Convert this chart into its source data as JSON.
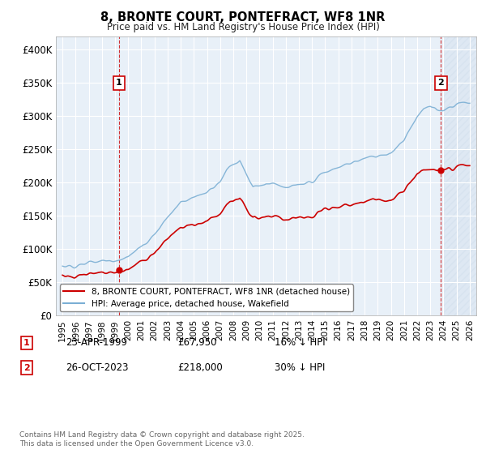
{
  "title": "8, BRONTE COURT, PONTEFRACT, WF8 1NR",
  "subtitle": "Price paid vs. HM Land Registry's House Price Index (HPI)",
  "ylim": [
    0,
    420000
  ],
  "yticks": [
    0,
    50000,
    100000,
    150000,
    200000,
    250000,
    300000,
    350000,
    400000
  ],
  "ytick_labels": [
    "£0",
    "£50K",
    "£100K",
    "£150K",
    "£200K",
    "£250K",
    "£300K",
    "£350K",
    "£400K"
  ],
  "xlim_start": 1994.5,
  "xlim_end": 2026.5,
  "sale1_date": 1999.31,
  "sale1_price": 67950,
  "sale1_label": "1",
  "sale2_date": 2023.81,
  "sale2_price": 218000,
  "sale2_label": "2",
  "legend_property": "8, BRONTE COURT, PONTEFRACT, WF8 1NR (detached house)",
  "legend_hpi": "HPI: Average price, detached house, Wakefield",
  "note1_label": "1",
  "note1_date": "23-APR-1999",
  "note1_price": "£67,950",
  "note1_hpi": "16% ↓ HPI",
  "note2_label": "2",
  "note2_date": "26-OCT-2023",
  "note2_price": "£218,000",
  "note2_hpi": "30% ↓ HPI",
  "copyright": "Contains HM Land Registry data © Crown copyright and database right 2025.\nThis data is licensed under the Open Government Licence v3.0.",
  "property_line_color": "#cc0000",
  "hpi_line_color": "#7bafd4",
  "grid_color": "#c8d8e8",
  "background_color": "#ffffff",
  "plot_bg_color": "#e8f0f8",
  "vline_color": "#cc0000",
  "marker_box_color": "#cc0000",
  "hatch_color": "#c8d8e8"
}
